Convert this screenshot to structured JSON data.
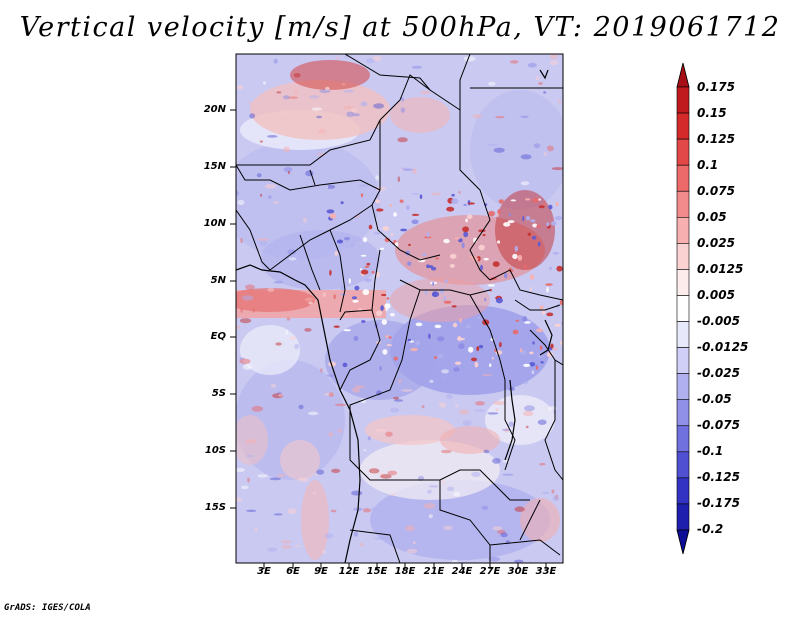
{
  "title": "Vertical velocity [m/s] at 500hPa, VT: 2019061712",
  "lat_labels": [
    "20N",
    "15N",
    "10N",
    "5N",
    "EQ",
    "5S",
    "10S",
    "15S"
  ],
  "lon_labels": [
    "3E",
    "6E",
    "9E",
    "12E",
    "15E",
    "18E",
    "21E",
    "24E",
    "27E",
    "30E",
    "33E"
  ],
  "colorbar": {
    "labels": [
      "0.175",
      "0.15",
      "0.125",
      "0.1",
      "0.075",
      "0.05",
      "0.025",
      "0.0125",
      "0.005",
      "-0.005",
      "-0.0125",
      "-0.025",
      "-0.05",
      "-0.075",
      "-0.1",
      "-0.125",
      "-0.175",
      "-0.2"
    ],
    "colors": [
      "#a50f15",
      "#c0191e",
      "#d42a2a",
      "#e34848",
      "#ec6a6a",
      "#f28c8c",
      "#f7afaf",
      "#fbd2d2",
      "#fdecec",
      "#ffffff",
      "#e8e8fb",
      "#cfcff7",
      "#b0b0f0",
      "#9090e8",
      "#7070de",
      "#5050d2",
      "#3232c3",
      "#1f1fae",
      "#0d0d95"
    ]
  },
  "credit": "GrADS: IGES/COLA"
}
